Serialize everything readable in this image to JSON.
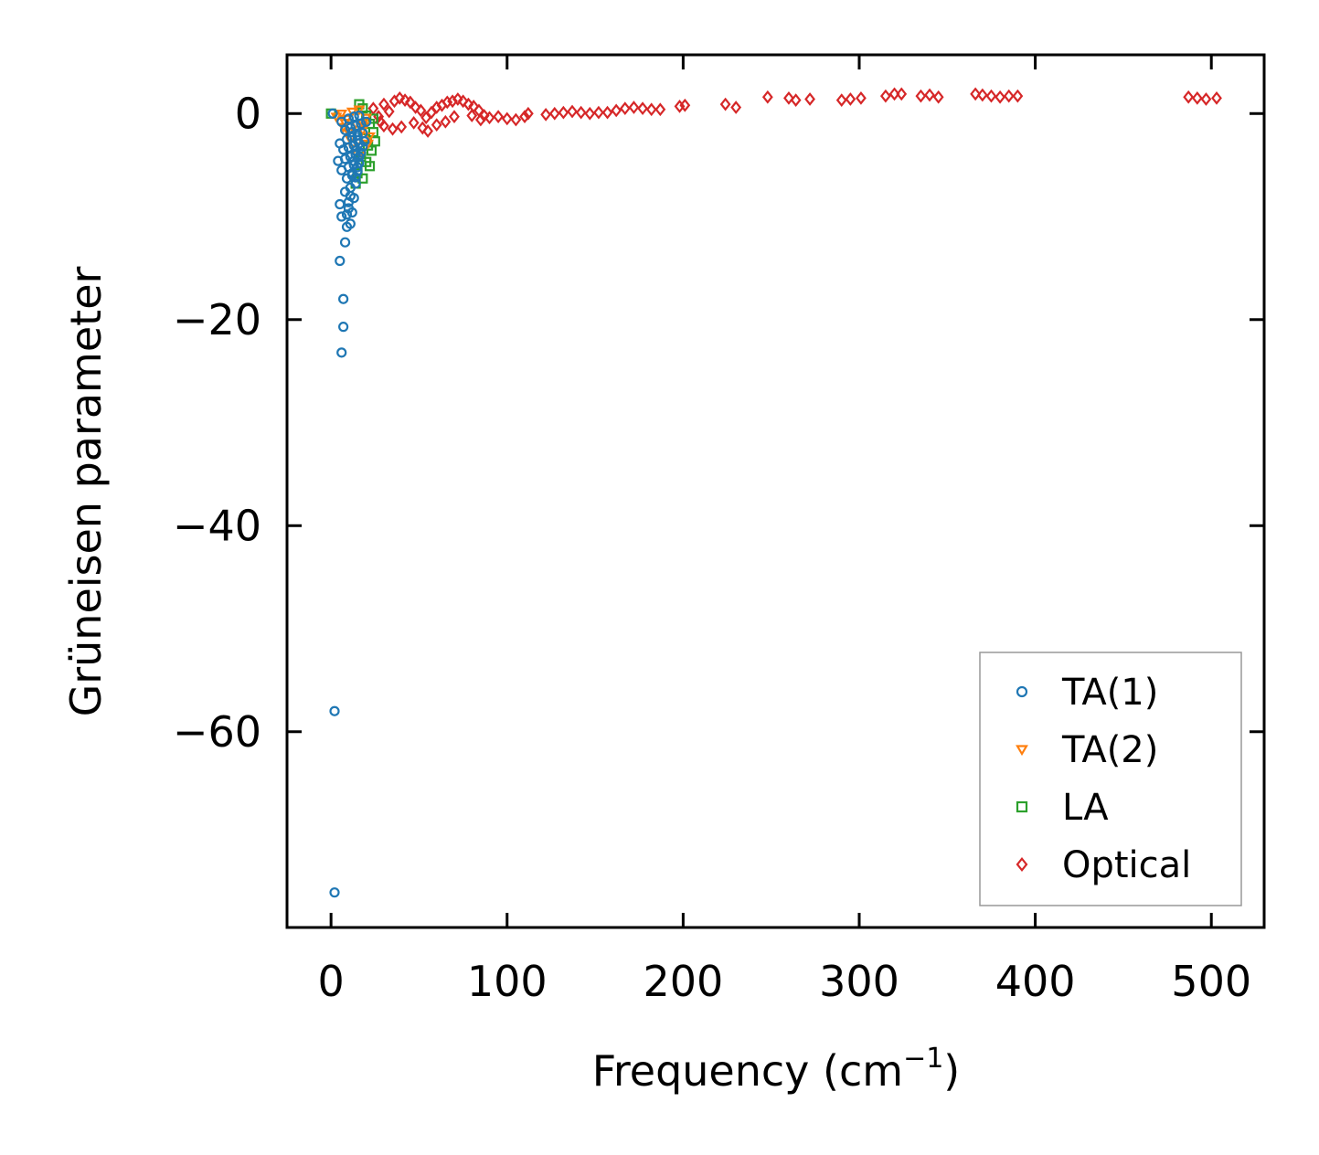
{
  "chart_data": {
    "type": "scatter",
    "title": "",
    "xlabel": "Frequency (cm",
    "xlabel_sup": "−1",
    "xlabel_end": ")",
    "ylabel": "Grüneisen parameter",
    "xlim": [
      -25,
      530
    ],
    "ylim": [
      -79,
      5.7
    ],
    "xticks": [
      0,
      100,
      200,
      300,
      400,
      500
    ],
    "xtick_labels": [
      "0",
      "100",
      "200",
      "300",
      "400",
      "500"
    ],
    "yticks": [
      0,
      -20,
      -40,
      -60
    ],
    "ytick_labels": [
      "0",
      "−20",
      "−40",
      "−60"
    ],
    "legend_position": "lower-right",
    "series": [
      {
        "name": "TA(1)",
        "marker": "circle",
        "color": "#1f77b4",
        "points": [
          [
            2,
            -58
          ],
          [
            2,
            -75.6
          ],
          [
            6,
            -23.2
          ],
          [
            7,
            -20.7
          ],
          [
            7,
            -18
          ],
          [
            5,
            -14.3
          ],
          [
            8,
            -12.5
          ],
          [
            9,
            -11
          ],
          [
            11,
            -10.7
          ],
          [
            6,
            -10
          ],
          [
            9,
            -9.8
          ],
          [
            12,
            -9.6
          ],
          [
            5,
            -8.8
          ],
          [
            10,
            -8.6
          ],
          [
            13,
            -8.2
          ],
          [
            8,
            -7.6
          ],
          [
            11,
            -7.2
          ],
          [
            14,
            -6.8
          ],
          [
            9,
            -6.3
          ],
          [
            12,
            -6
          ],
          [
            15,
            -5.6
          ],
          [
            6,
            -5.5
          ],
          [
            10,
            -5.2
          ],
          [
            13,
            -5
          ],
          [
            16,
            -4.8
          ],
          [
            4,
            -4.6
          ],
          [
            8,
            -4.4
          ],
          [
            11,
            -4.2
          ],
          [
            14,
            -4
          ],
          [
            17,
            -3.8
          ],
          [
            7,
            -3.5
          ],
          [
            10,
            -3.3
          ],
          [
            13,
            -3.1
          ],
          [
            16,
            -2.9
          ],
          [
            19,
            -2.7
          ],
          [
            5,
            -2.9
          ],
          [
            9,
            -2.5
          ],
          [
            12,
            -2.3
          ],
          [
            15,
            -2.1
          ],
          [
            18,
            -1.9
          ],
          [
            8,
            -1.6
          ],
          [
            11,
            -1.4
          ],
          [
            14,
            -1.2
          ],
          [
            17,
            -1
          ],
          [
            20,
            -0.8
          ],
          [
            6,
            -0.8
          ],
          [
            10,
            -0.5
          ],
          [
            13,
            -0.3
          ],
          [
            16,
            -0.2
          ],
          [
            1,
            0
          ],
          [
            12,
            -1.8
          ],
          [
            15,
            -2.6
          ],
          [
            18,
            -3.2
          ],
          [
            14,
            -3.6
          ],
          [
            16,
            -4.2
          ],
          [
            13,
            -4.6
          ],
          [
            15,
            -5.2
          ],
          [
            12,
            -5.8
          ],
          [
            14,
            -6.2
          ],
          [
            11,
            -8
          ],
          [
            10,
            -9.2
          ]
        ]
      },
      {
        "name": "TA(2)",
        "marker": "triangle-down",
        "color": "#ff7f0e",
        "points": [
          [
            3,
            -0.3
          ],
          [
            6,
            0
          ],
          [
            9,
            -0.5
          ],
          [
            12,
            0.2
          ],
          [
            14,
            -1
          ],
          [
            16,
            0.4
          ],
          [
            18,
            -1.6
          ],
          [
            20,
            -0.4
          ],
          [
            22,
            -2.2
          ],
          [
            11,
            -2.5
          ],
          [
            13,
            -3.4
          ],
          [
            15,
            -2.8
          ],
          [
            17,
            -3.8
          ],
          [
            19,
            -1.2
          ],
          [
            21,
            -2.9
          ],
          [
            8,
            -0.9
          ],
          [
            10,
            -1.8
          ],
          [
            7,
            -1.3
          ]
        ]
      },
      {
        "name": "LA",
        "marker": "square",
        "color": "#2ca02c",
        "points": [
          [
            0,
            0
          ],
          [
            16,
            0.9
          ],
          [
            18,
            0.5
          ],
          [
            20,
            -0.2
          ],
          [
            22,
            -1
          ],
          [
            24,
            -1.8
          ],
          [
            19,
            -2.4
          ],
          [
            21,
            -3.1
          ],
          [
            23,
            -3.6
          ],
          [
            17,
            -4.2
          ],
          [
            20,
            -4.7
          ],
          [
            22,
            -5.1
          ],
          [
            25,
            -2.7
          ],
          [
            24,
            -0.5
          ],
          [
            15,
            -5.8
          ],
          [
            18,
            -6.3
          ],
          [
            14,
            -6.8
          ]
        ]
      },
      {
        "name": "Optical",
        "marker": "diamond",
        "color": "#d62728",
        "points": [
          [
            24,
            0.5
          ],
          [
            27,
            -0.3
          ],
          [
            30,
            0.9
          ],
          [
            33,
            0.2
          ],
          [
            36,
            1.2
          ],
          [
            39,
            1.5
          ],
          [
            42,
            1.3
          ],
          [
            45,
            1.1
          ],
          [
            48,
            0.6
          ],
          [
            51,
            0.3
          ],
          [
            54,
            -0.4
          ],
          [
            57,
            0.1
          ],
          [
            60,
            0.6
          ],
          [
            63,
            0.8
          ],
          [
            66,
            1.1
          ],
          [
            69,
            1.2
          ],
          [
            72,
            1.4
          ],
          [
            75,
            1.2
          ],
          [
            78,
            0.9
          ],
          [
            81,
            0.7
          ],
          [
            84,
            0.3
          ],
          [
            87,
            -0.2
          ],
          [
            90,
            -0.4
          ],
          [
            95,
            -0.3
          ],
          [
            100,
            -0.5
          ],
          [
            105,
            -0.6
          ],
          [
            110,
            -0.3
          ],
          [
            112,
            0
          ],
          [
            122,
            -0.1
          ],
          [
            127,
            0
          ],
          [
            132,
            0.1
          ],
          [
            137,
            0.2
          ],
          [
            142,
            0.1
          ],
          [
            147,
            0
          ],
          [
            152,
            0.1
          ],
          [
            157,
            0.1
          ],
          [
            162,
            0.3
          ],
          [
            167,
            0.5
          ],
          [
            172,
            0.6
          ],
          [
            177,
            0.5
          ],
          [
            182,
            0.4
          ],
          [
            187,
            0.4
          ],
          [
            198,
            0.7
          ],
          [
            201,
            0.8
          ],
          [
            224,
            0.9
          ],
          [
            230,
            0.6
          ],
          [
            248,
            1.6
          ],
          [
            260,
            1.5
          ],
          [
            264,
            1.3
          ],
          [
            272,
            1.4
          ],
          [
            290,
            1.3
          ],
          [
            295,
            1.4
          ],
          [
            301,
            1.5
          ],
          [
            315,
            1.7
          ],
          [
            320,
            1.9
          ],
          [
            324,
            1.9
          ],
          [
            335,
            1.7
          ],
          [
            340,
            1.8
          ],
          [
            345,
            1.6
          ],
          [
            366,
            1.9
          ],
          [
            370,
            1.8
          ],
          [
            375,
            1.7
          ],
          [
            380,
            1.6
          ],
          [
            385,
            1.7
          ],
          [
            390,
            1.7
          ],
          [
            487,
            1.6
          ],
          [
            492,
            1.5
          ],
          [
            497,
            1.4
          ],
          [
            503,
            1.5
          ],
          [
            30,
            -1.2
          ],
          [
            35,
            -1.5
          ],
          [
            40,
            -1.3
          ],
          [
            47,
            -0.9
          ],
          [
            52,
            -1.4
          ],
          [
            55,
            -1.7
          ],
          [
            60,
            -1.1
          ],
          [
            65,
            -0.8
          ],
          [
            70,
            -0.3
          ],
          [
            80,
            -0.2
          ],
          [
            85,
            -0.6
          ],
          [
            28,
            -0.8
          ]
        ]
      }
    ]
  }
}
